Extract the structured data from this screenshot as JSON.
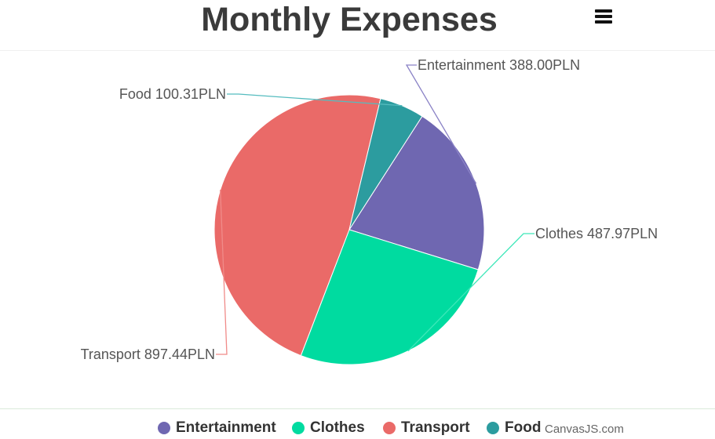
{
  "chart_data": {
    "type": "pie",
    "title": "Monthly Expenses",
    "unit": "PLN",
    "slices": [
      {
        "name": "Entertainment",
        "value": 388.0,
        "color": "#6f67b1",
        "label": "Entertainment 388.00PLN"
      },
      {
        "name": "Clothes",
        "value": 487.97,
        "color": "#00dba0",
        "label": "Clothes 487.97PLN"
      },
      {
        "name": "Transport",
        "value": 897.44,
        "color": "#ea6a68",
        "label": "Transport 897.44PLN"
      },
      {
        "name": "Food",
        "value": 100.31,
        "color": "#2c9c9f",
        "label": "Food 100.31PLN"
      }
    ],
    "legend_position": "bottom"
  },
  "toolbar": {
    "menu_icon": "hamburger-menu-icon"
  },
  "credit": "CanvasJS.com"
}
